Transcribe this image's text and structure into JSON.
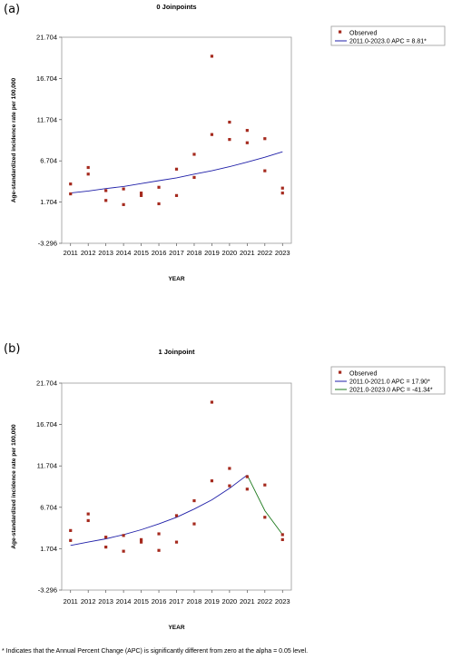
{
  "panels": [
    {
      "label": "(a)"
    },
    {
      "label": "(b)"
    }
  ],
  "footnote": "* Indicates that the Annual Percent Change (APC) is significantly different from zero at the alpha = 0.05 level.",
  "chart_data": [
    {
      "type": "scatter",
      "title": "0 Joinpoints",
      "xlabel": "YEAR",
      "ylabel": "Age-standardized incidence rate per 100,000",
      "ylim": [
        -3.296,
        21.704
      ],
      "xlim": [
        2010.5,
        2023.5
      ],
      "y_ticks": [
        "-3.296",
        "1.704",
        "6.704",
        "11.704",
        "16.704",
        "21.704"
      ],
      "x_ticks": [
        "2011",
        "2012",
        "2013",
        "2014",
        "2015",
        "2016",
        "2017",
        "2018",
        "2019",
        "2020",
        "2021",
        "2022",
        "2023"
      ],
      "grid": false,
      "legend_position": "right",
      "point_color": "#a52a1e",
      "observed": {
        "name": "Observed",
        "x": [
          2011,
          2011,
          2012,
          2012,
          2013,
          2013,
          2014,
          2014,
          2015,
          2015,
          2016,
          2016,
          2017,
          2017,
          2018,
          2018,
          2019,
          2019,
          2020,
          2020,
          2021,
          2021,
          2022,
          2022,
          2023,
          2023
        ],
        "y": [
          3.9,
          2.7,
          5.9,
          5.1,
          3.1,
          1.9,
          3.3,
          1.4,
          2.8,
          2.5,
          3.5,
          1.5,
          5.7,
          2.5,
          7.5,
          4.7,
          9.9,
          19.4,
          9.3,
          11.4,
          8.9,
          10.4,
          9.4,
          5.5,
          3.4,
          2.8
        ]
      },
      "series": [
        {
          "name": "2011.0-2023.0 APC =  8.81*",
          "color": "#1f1fa8",
          "x": [
            2011,
            2012,
            2013,
            2014,
            2015,
            2016,
            2017,
            2018,
            2019,
            2020,
            2021,
            2022,
            2023
          ],
          "y": [
            2.8,
            3.05,
            3.35,
            3.6,
            3.95,
            4.3,
            4.65,
            5.1,
            5.5,
            6.0,
            6.55,
            7.15,
            7.8
          ]
        }
      ]
    },
    {
      "type": "scatter",
      "title": "1 Joinpoint",
      "xlabel": "YEAR",
      "ylabel": "Age-standardized incidence rate per 100,000",
      "ylim": [
        -3.296,
        21.704
      ],
      "xlim": [
        2010.5,
        2023.5
      ],
      "y_ticks": [
        "-3.296",
        "1.704",
        "6.704",
        "11.704",
        "16.704",
        "21.704"
      ],
      "x_ticks": [
        "2011",
        "2012",
        "2013",
        "2014",
        "2015",
        "2016",
        "2017",
        "2018",
        "2019",
        "2020",
        "2021",
        "2022",
        "2023"
      ],
      "grid": false,
      "legend_position": "right",
      "point_color": "#a52a1e",
      "observed": {
        "name": "Observed",
        "x": [
          2011,
          2011,
          2012,
          2012,
          2013,
          2013,
          2014,
          2014,
          2015,
          2015,
          2016,
          2016,
          2017,
          2017,
          2018,
          2018,
          2019,
          2019,
          2020,
          2020,
          2021,
          2021,
          2022,
          2022,
          2023,
          2023
        ],
        "y": [
          3.9,
          2.7,
          5.9,
          5.1,
          3.1,
          1.9,
          3.3,
          1.4,
          2.8,
          2.5,
          3.5,
          1.5,
          5.7,
          2.5,
          7.5,
          4.7,
          9.9,
          19.4,
          9.3,
          11.4,
          8.9,
          10.4,
          9.4,
          5.5,
          3.4,
          2.8
        ]
      },
      "series": [
        {
          "name": "2011.0-2021.0 APC =  17.90*",
          "color": "#1f1fa8",
          "x": [
            2011,
            2012,
            2013,
            2014,
            2015,
            2016,
            2017,
            2018,
            2019,
            2020,
            2021
          ],
          "y": [
            2.1,
            2.5,
            2.9,
            3.4,
            4.0,
            4.7,
            5.5,
            6.5,
            7.6,
            9.0,
            10.6
          ]
        },
        {
          "name": "2021.0-2023.0 APC =  -41.34*",
          "color": "#1e7a1e",
          "x": [
            2021,
            2022,
            2023
          ],
          "y": [
            10.6,
            6.3,
            3.4
          ]
        }
      ]
    }
  ]
}
